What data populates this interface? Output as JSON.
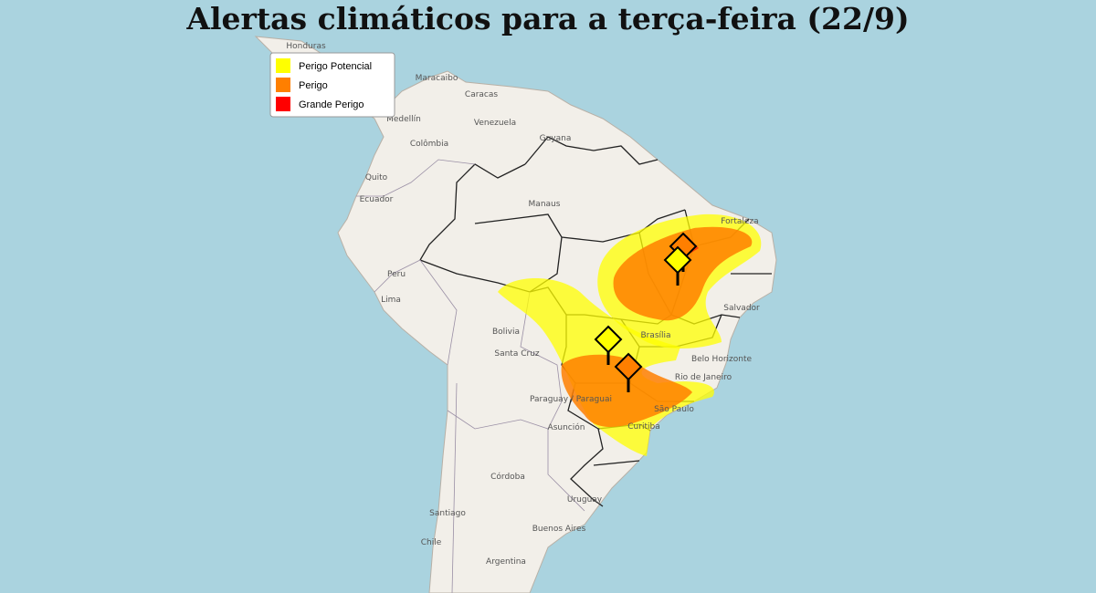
{
  "title": "Alertas climáticos para a terça-feira (22/9)",
  "legend": {
    "items": [
      {
        "label": "Perigo Potencial",
        "color": "#ffff00"
      },
      {
        "label": "Perigo",
        "color": "#ff7f00"
      },
      {
        "label": "Grande Perigo",
        "color": "#ff0000"
      }
    ]
  },
  "places": [
    {
      "label": "Honduras"
    },
    {
      "label": "Maracaibo"
    },
    {
      "label": "Caracas"
    },
    {
      "label": "Medellín"
    },
    {
      "label": "Venezuela"
    },
    {
      "label": "Guyana"
    },
    {
      "label": "Colômbia"
    },
    {
      "label": "Quito"
    },
    {
      "label": "Ecuador"
    },
    {
      "label": "Manaus"
    },
    {
      "label": "Fortaleza"
    },
    {
      "label": "Peru"
    },
    {
      "label": "Lima"
    },
    {
      "label": "Salvador"
    },
    {
      "label": "Bolivia"
    },
    {
      "label": "Brasília"
    },
    {
      "label": "Santa Cruz"
    },
    {
      "label": "Belo Horizonte"
    },
    {
      "label": "Rio de Janeiro"
    },
    {
      "label": "Paraguay / Paraguai"
    },
    {
      "label": "Asunción"
    },
    {
      "label": "São Paulo"
    },
    {
      "label": "Curitiba"
    },
    {
      "label": "Córdoba"
    },
    {
      "label": "Uruguay"
    },
    {
      "label": "Santiago"
    },
    {
      "label": "Buenos Aires"
    },
    {
      "label": "Chile"
    },
    {
      "label": "Argentina"
    }
  ]
}
